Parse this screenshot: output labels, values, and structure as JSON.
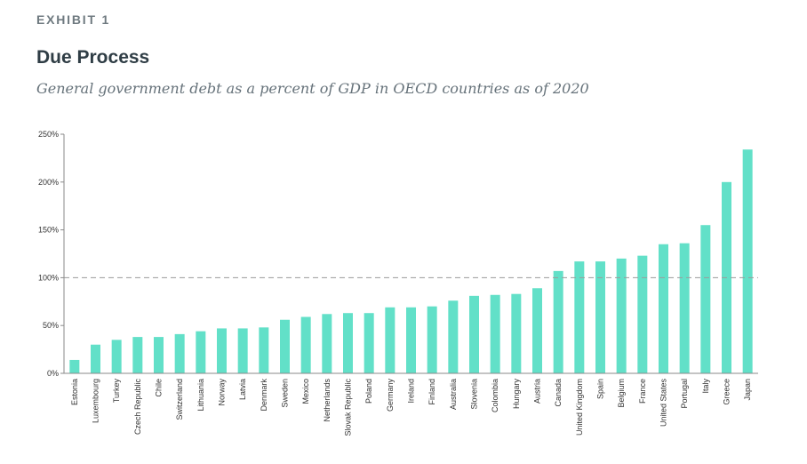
{
  "exhibit_label": "EXHIBIT 1",
  "title": "Due Process",
  "subtitle": "General government debt as a percent of GDP in OECD countries as of 2020",
  "colors": {
    "bar": "#62e0c8",
    "axis": "#8a8a8a",
    "reference_line": "#9a9a9a"
  },
  "chart_data": {
    "type": "bar",
    "categories": [
      "Estonia",
      "Luxembourg",
      "Turkey",
      "Czech Republic",
      "Chile",
      "Switzerland",
      "Lithuania",
      "Norway",
      "Latvia",
      "Denmark",
      "Sweden",
      "Mexico",
      "Netherlands",
      "Slovak Republic",
      "Poland",
      "Germany",
      "Ireland",
      "Finland",
      "Australia",
      "Slovenia",
      "Colombia",
      "Hungary",
      "Austria",
      "Canada",
      "United Kingdom",
      "Spain",
      "Belgium",
      "France",
      "United States",
      "Portugal",
      "Italy",
      "Greece",
      "Japan"
    ],
    "values": [
      14,
      30,
      35,
      38,
      38,
      41,
      44,
      47,
      47,
      48,
      56,
      59,
      62,
      63,
      63,
      69,
      69,
      70,
      76,
      81,
      82,
      83,
      89,
      107,
      117,
      117,
      120,
      123,
      135,
      136,
      155,
      200,
      234
    ],
    "ylim": [
      0,
      250
    ],
    "yticks": [
      "0%",
      "50%",
      "100%",
      "150%",
      "200%",
      "250%"
    ],
    "ytick_values": [
      0,
      50,
      100,
      150,
      200,
      250
    ],
    "reference_line": 100,
    "grid": false,
    "xlabel": "",
    "ylabel": ""
  }
}
